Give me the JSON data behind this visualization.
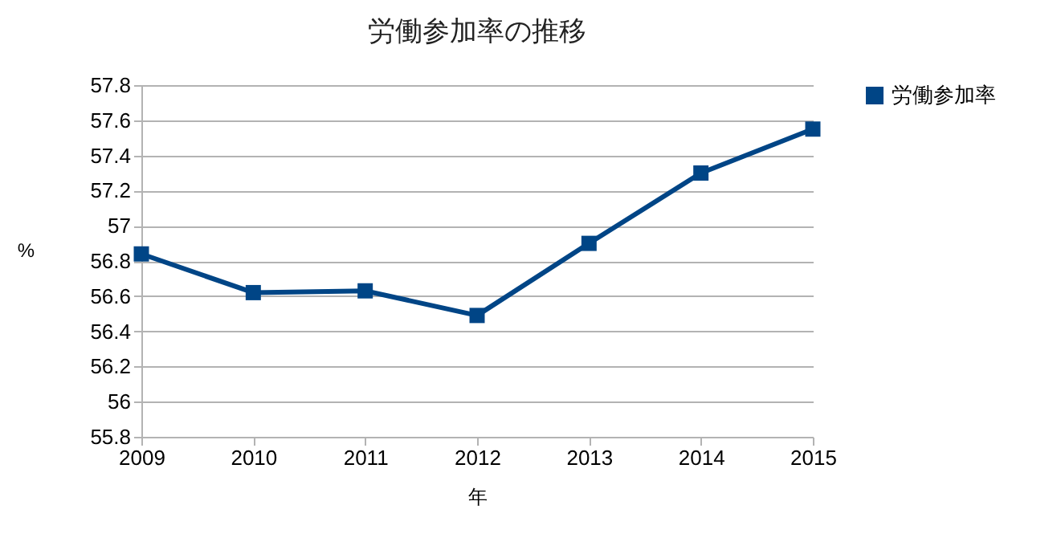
{
  "chart_data": {
    "type": "line",
    "title": "労働参加率の推移",
    "xlabel": "年",
    "ylabel": "%",
    "categories": [
      "2009",
      "2010",
      "2011",
      "2012",
      "2013",
      "2014",
      "2015"
    ],
    "series": [
      {
        "name": "労働参加率",
        "color": "#004586",
        "values": [
          56.84,
          56.62,
          56.63,
          56.49,
          56.9,
          57.3,
          57.55
        ]
      }
    ],
    "ylim": [
      55.8,
      57.8
    ],
    "yticks": [
      55.8,
      56,
      56.2,
      56.4,
      56.6,
      56.8,
      57,
      57.2,
      57.4,
      57.6,
      57.8
    ],
    "grid": "y",
    "legend": "right",
    "marker": "square",
    "line_style": "solid"
  }
}
